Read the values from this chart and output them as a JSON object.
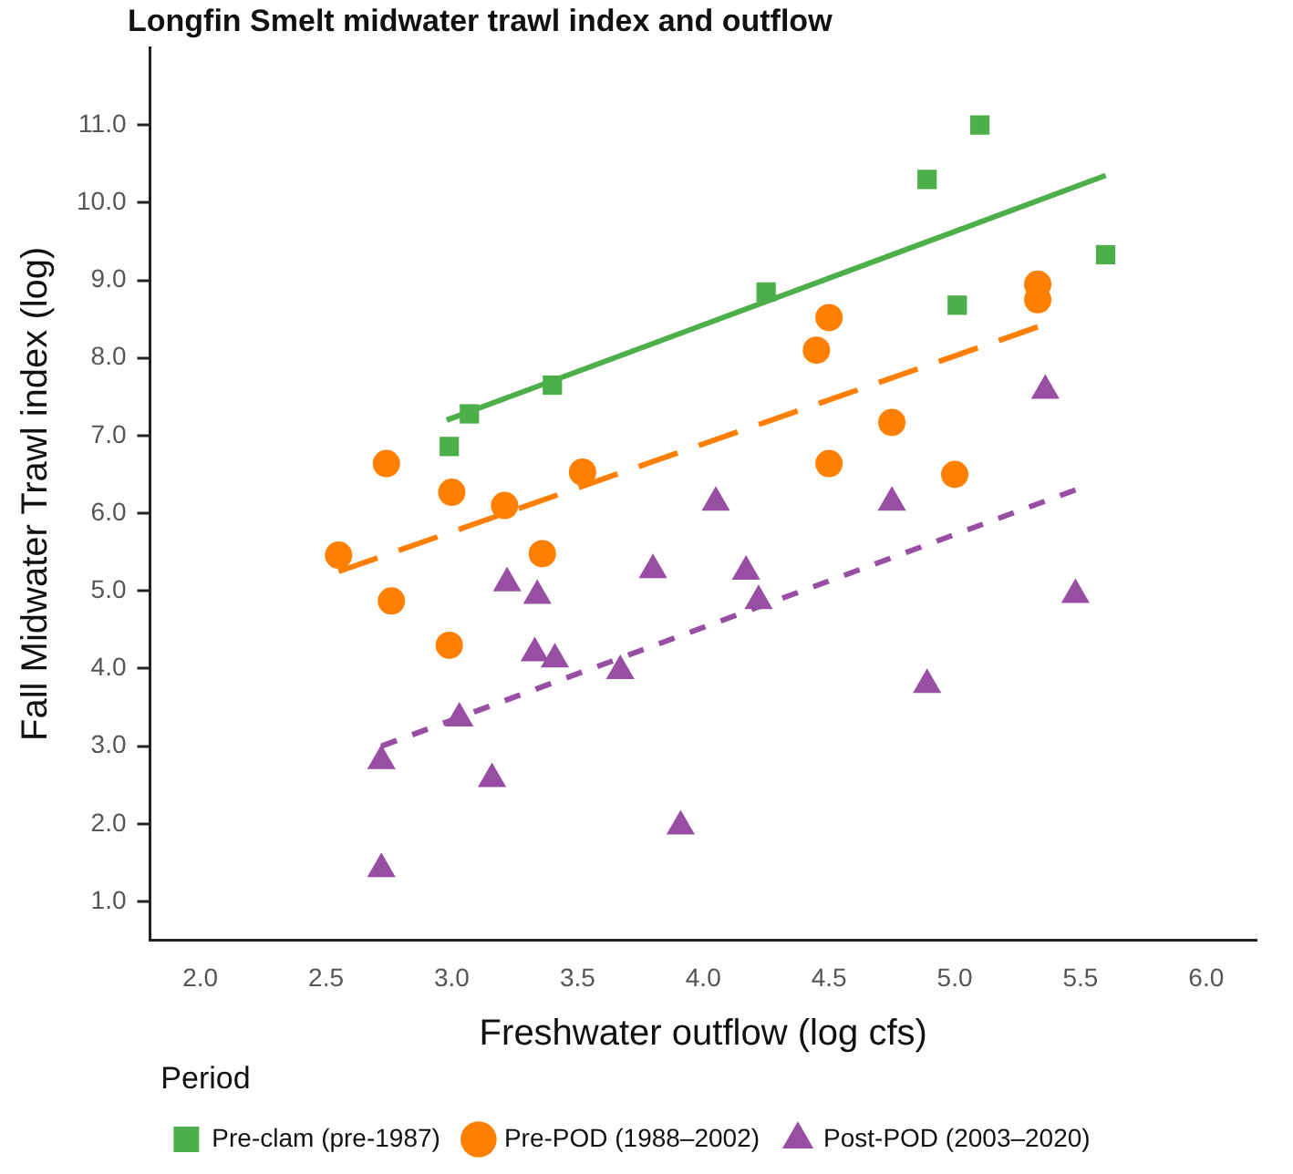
{
  "chart_data": {
    "type": "scatter",
    "title": "Longfin Smelt midwater trawl index and outflow",
    "xlabel": "Freshwater outflow (log cfs)",
    "ylabel": "Fall Midwater Trawl index (log)",
    "legend_title": "Period",
    "legend": "bottom",
    "grid": false,
    "xlim": [
      1.8,
      6.2
    ],
    "xticks": [
      {
        "value": 2,
        "label": "2.0"
      },
      {
        "value": 2.5,
        "label": "2.5"
      },
      {
        "value": 3,
        "label": "3.0"
      },
      {
        "value": 3.5,
        "label": "3.5"
      },
      {
        "value": 4,
        "label": "4.0"
      },
      {
        "value": 4.5,
        "label": "4.5"
      },
      {
        "value": 5,
        "label": "5.0"
      },
      {
        "value": 5.5,
        "label": "5.5"
      },
      {
        "value": 6,
        "label": "6.0"
      }
    ],
    "ylim": [
      0.5,
      12
    ],
    "yticks": [
      {
        "value": 1,
        "label": "1.0"
      },
      {
        "value": 2,
        "label": "2.0"
      },
      {
        "value": 3,
        "label": "3.0"
      },
      {
        "value": 4,
        "label": "4.0"
      },
      {
        "value": 5,
        "label": "5.0"
      },
      {
        "value": 6,
        "label": "6.0"
      },
      {
        "value": 7,
        "label": "7.0"
      },
      {
        "value": 8,
        "label": "8.0"
      },
      {
        "value": 9,
        "label": "9.0"
      },
      {
        "value": 10,
        "label": "10.0"
      },
      {
        "value": 11,
        "label": "11.0"
      }
    ],
    "series": [
      {
        "name": "Pre-clam (pre-1987)",
        "color": "#4daf4a",
        "marker": "square",
        "x": [
          2.99,
          3.07,
          3.4,
          4.25,
          4.89,
          5.1,
          5.01,
          5.6
        ],
        "values": [
          6.86,
          7.28,
          7.65,
          8.85,
          10.3,
          11.0,
          8.68,
          9.33
        ]
      },
      {
        "name": "Pre-POD (1988–2002)",
        "color": "#ff7f00",
        "marker": "circle",
        "x": [
          2.55,
          2.74,
          2.76,
          2.99,
          3.0,
          3.21,
          3.36,
          3.52,
          4.45,
          4.5,
          4.5,
          4.75,
          5.0,
          5.33,
          5.33
        ],
        "values": [
          5.46,
          6.64,
          4.87,
          4.3,
          6.27,
          6.1,
          5.48,
          6.53,
          8.1,
          8.52,
          6.64,
          7.17,
          6.5,
          8.95,
          8.75
        ]
      },
      {
        "name": "Post-POD (2003–2020)",
        "color": "#984ea3",
        "marker": "triangle",
        "x": [
          2.72,
          2.72,
          3.03,
          3.16,
          3.22,
          3.33,
          3.34,
          3.41,
          3.67,
          3.8,
          3.91,
          4.05,
          4.17,
          4.22,
          4.75,
          4.89,
          5.36,
          5.48
        ],
        "values": [
          2.81,
          1.42,
          3.36,
          2.58,
          5.1,
          4.2,
          4.94,
          4.12,
          3.97,
          5.27,
          1.97,
          6.14,
          5.25,
          4.87,
          6.14,
          3.79,
          7.58,
          4.95
        ]
      },
      {
        "type": "line",
        "color": "#4daf4a",
        "line_style": "solid",
        "marker": "none",
        "x": [
          2.98,
          5.6
        ],
        "values": [
          7.2,
          10.35
        ]
      },
      {
        "type": "line",
        "color": "#ff7f00",
        "line_style": "dashed",
        "marker": "none",
        "x": [
          2.55,
          5.33
        ],
        "values": [
          5.25,
          8.4
        ]
      },
      {
        "type": "line",
        "color": "#984ea3",
        "line_style": "dotted",
        "marker": "none",
        "x": [
          2.72,
          5.48
        ],
        "values": [
          3.0,
          6.3
        ]
      }
    ]
  }
}
